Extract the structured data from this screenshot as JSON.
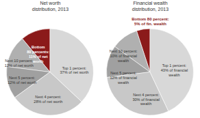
{
  "chart_data": [
    {
      "type": "pie",
      "title": "Net worth\ndistribution, 2013",
      "categories": [
        "Bottom\n80 percents:\n11% of net\nworth",
        "Next 10 percent:\n12% of net worth",
        "Next 5 percent:\n12% of net worth",
        "Next 4 percent:\n28% of net worth",
        "Top 1 percent:\n37% of net worth"
      ],
      "values": [
        11,
        12,
        12,
        28,
        37
      ],
      "colors": [
        "#8B1A1A",
        "#B0B0B0",
        "#A0A0A0",
        "#C8C8C8",
        "#D8D8D8"
      ]
    },
    {
      "type": "pie",
      "title": "Financial wealth\ndistribution, 2013",
      "categories": [
        "Bottom 80 percent:\n5% of fin. wealth",
        "Next 10 percent:\n10% of financial\nwealth",
        "Next 5 percent:\n12% of financial\nwealth",
        "Next 4 percent:\n30% of financial\nwealth",
        "Top 1 percent:\n43% of financial\nwealth"
      ],
      "values": [
        5,
        10,
        12,
        30,
        43
      ],
      "colors": [
        "#8B1A1A",
        "#B0B0B0",
        "#A0A0A0",
        "#C8C8C8",
        "#D8D8D8"
      ]
    }
  ]
}
